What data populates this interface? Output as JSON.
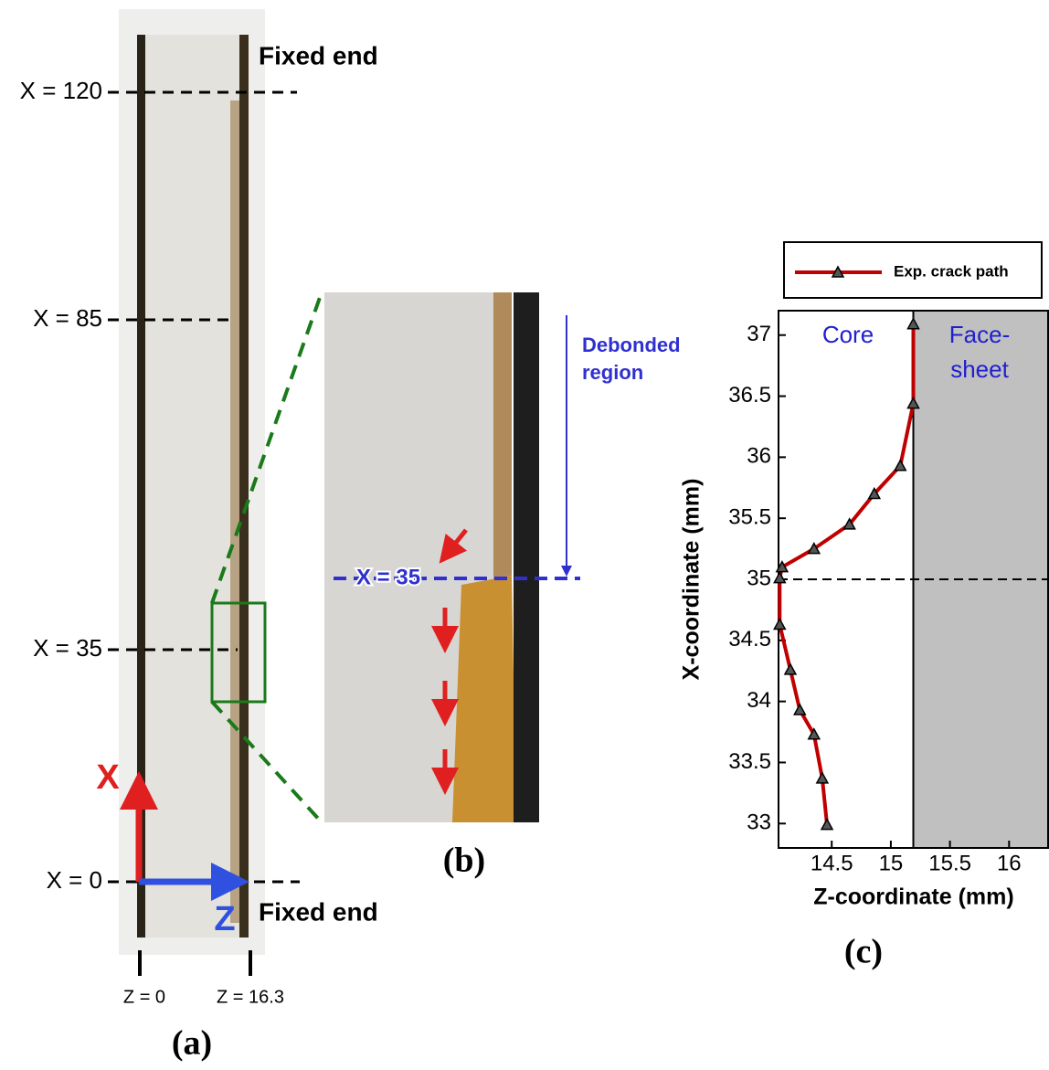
{
  "panel_a": {
    "x_labels": [
      "X = 120",
      "X = 85",
      "X = 35",
      "X = 0"
    ],
    "fixed_end_top": "Fixed end",
    "fixed_end_bottom": "Fixed end",
    "axis_x": "X",
    "axis_z": "Z",
    "z_labels": [
      "Z = 0",
      "Z = 16.3"
    ],
    "caption": "(a)"
  },
  "panel_b": {
    "debonded_label": [
      "Debonded",
      "region"
    ],
    "x_label": "X = 35",
    "caption": "(b)"
  },
  "chart_data": {
    "type": "line",
    "caption": "(c)",
    "x_label": "Z-coordinate (mm)",
    "y_label": "X-coordinate (mm)",
    "x": [
      15.19,
      15.19,
      15.08,
      14.86,
      14.65,
      14.35,
      14.08,
      14.06,
      14.06,
      14.15,
      14.23,
      14.35,
      14.42,
      14.46
    ],
    "series": [
      {
        "name": "Exp. crack path",
        "color": "#c00000",
        "values": [
          37.09,
          36.44,
          35.93,
          35.7,
          35.45,
          35.25,
          35.1,
          35.01,
          34.63,
          34.26,
          33.93,
          33.73,
          33.37,
          32.99
        ]
      }
    ],
    "xlim": [
      14.05,
      16.33
    ],
    "ylim": [
      32.8,
      37.2
    ],
    "xticks": [
      14.5,
      15,
      15.5,
      16
    ],
    "yticks": [
      33,
      33.5,
      34,
      34.5,
      35,
      35.5,
      36,
      36.5,
      37
    ],
    "regions": {
      "core": "Core",
      "facesheet": [
        "Face-",
        "sheet"
      ],
      "facesheet_start": 15.19
    },
    "ref_line": 35
  }
}
